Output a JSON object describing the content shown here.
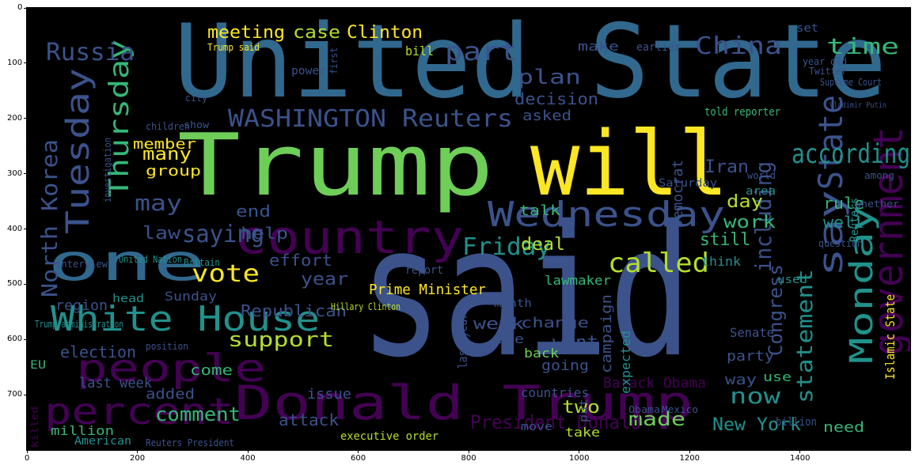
{
  "axes": {
    "x_ticks": [
      "0",
      "200",
      "400",
      "600",
      "800",
      "1000",
      "1200",
      "1400"
    ],
    "x_values": [
      0,
      200,
      400,
      600,
      800,
      1000,
      1200,
      1400
    ],
    "y_ticks": [
      "0",
      "100",
      "200",
      "300",
      "400",
      "500",
      "600",
      "700"
    ],
    "y_values": [
      0,
      100,
      200,
      300,
      400,
      500,
      600,
      700
    ],
    "x_max": 1600,
    "y_max": 800
  },
  "palette": {
    "background": "#000000",
    "purple": "#440154",
    "indigo": "#3b528b",
    "blue": "#31688e",
    "teal": "#21918c",
    "sea": "#35b779",
    "green": "#6ece58",
    "lime": "#b5de2b",
    "yellow": "#fde725"
  },
  "words": [
    {
      "text": "United State",
      "c": "blue"
    },
    {
      "text": "said",
      "c": "indigo"
    },
    {
      "text": "Trump",
      "c": "green"
    },
    {
      "text": "will",
      "c": "yellow"
    },
    {
      "text": "Donald Trump",
      "c": "purple"
    },
    {
      "text": "one",
      "c": "blue"
    },
    {
      "text": "country",
      "c": "purple"
    },
    {
      "text": "White House",
      "c": "teal"
    },
    {
      "text": "people",
      "c": "purple"
    },
    {
      "text": "percent",
      "c": "purple"
    },
    {
      "text": "Wednesday",
      "c": "indigo"
    },
    {
      "text": "WASHINGTON Reuters",
      "c": "indigo"
    },
    {
      "text": "government",
      "c": "purple"
    },
    {
      "text": "say",
      "c": "indigo"
    },
    {
      "text": "State",
      "c": "indigo"
    },
    {
      "text": "Monday",
      "c": "teal"
    },
    {
      "text": "Tuesday",
      "c": "indigo"
    },
    {
      "text": "Thursday",
      "c": "sea"
    },
    {
      "text": "North Korea",
      "c": "indigo"
    },
    {
      "text": "Russia",
      "c": "indigo"
    },
    {
      "text": "China",
      "c": "indigo"
    },
    {
      "text": "time",
      "c": "sea"
    },
    {
      "text": "part",
      "c": "indigo"
    },
    {
      "text": "plan",
      "c": "indigo"
    },
    {
      "text": "according",
      "c": "teal"
    },
    {
      "text": "meeting",
      "c": "yellow"
    },
    {
      "text": "case",
      "c": "lime"
    },
    {
      "text": "Clinton",
      "c": "yellow"
    },
    {
      "text": "called",
      "c": "lime"
    },
    {
      "text": "Friday",
      "c": "teal"
    },
    {
      "text": "vote",
      "c": "yellow"
    },
    {
      "text": "saying",
      "c": "indigo"
    },
    {
      "text": "may",
      "c": "indigo"
    },
    {
      "text": "law",
      "c": "indigo"
    },
    {
      "text": "many",
      "c": "yellow"
    },
    {
      "text": "including",
      "c": "indigo"
    },
    {
      "text": "statement",
      "c": "teal"
    },
    {
      "text": "Congress",
      "c": "indigo"
    },
    {
      "text": "support",
      "c": "lime"
    },
    {
      "text": "election",
      "c": "indigo"
    },
    {
      "text": "comment",
      "c": "sea"
    },
    {
      "text": "made",
      "c": "green"
    },
    {
      "text": "New York",
      "c": "teal"
    },
    {
      "text": "President Donald",
      "c": "purple"
    },
    {
      "text": "now",
      "c": "teal"
    },
    {
      "text": "Republican",
      "c": "indigo"
    },
    {
      "text": "Prime Minister",
      "c": "yellow"
    },
    {
      "text": "want",
      "c": "indigo"
    },
    {
      "text": "Barack Obama",
      "c": "purple"
    },
    {
      "text": "attack",
      "c": "indigo"
    },
    {
      "text": "added",
      "c": "indigo"
    },
    {
      "text": "last week",
      "c": "indigo"
    },
    {
      "text": "million",
      "c": "sea"
    },
    {
      "text": "Islamic State",
      "c": "yellow"
    },
    {
      "text": "decision",
      "c": "indigo"
    },
    {
      "text": "asked",
      "c": "indigo"
    },
    {
      "text": "member",
      "c": "yellow"
    },
    {
      "text": "told reporter",
      "c": "sea"
    },
    {
      "text": "Iran",
      "c": "indigo"
    },
    {
      "text": "day",
      "c": "lime"
    },
    {
      "text": "work",
      "c": "sea"
    },
    {
      "text": "rule",
      "c": "sea"
    },
    {
      "text": "well",
      "c": "teal"
    },
    {
      "text": "still",
      "c": "sea"
    },
    {
      "text": "deal",
      "c": "lime"
    },
    {
      "text": "talk",
      "c": "sea"
    },
    {
      "text": "group",
      "c": "yellow"
    },
    {
      "text": "end",
      "c": "indigo"
    },
    {
      "text": "help",
      "c": "indigo"
    },
    {
      "text": "effort",
      "c": "indigo"
    },
    {
      "text": "year",
      "c": "indigo"
    },
    {
      "text": "two",
      "c": "lime"
    },
    {
      "text": "week",
      "c": "indigo"
    },
    {
      "text": "change",
      "c": "indigo"
    },
    {
      "text": "campaign",
      "c": "indigo"
    },
    {
      "text": "issue",
      "c": "indigo"
    },
    {
      "text": "come",
      "c": "sea"
    },
    {
      "text": "Sunday",
      "c": "indigo"
    },
    {
      "text": "Saturday",
      "c": "indigo"
    },
    {
      "text": "Democrat",
      "c": "indigo"
    },
    {
      "text": "region",
      "c": "indigo"
    },
    {
      "text": "going",
      "c": "indigo"
    },
    {
      "text": "party",
      "c": "indigo"
    },
    {
      "text": "way",
      "c": "indigo"
    },
    {
      "text": "use",
      "c": "sea"
    },
    {
      "text": "need",
      "c": "sea"
    },
    {
      "text": "countries",
      "c": "indigo"
    },
    {
      "text": "take",
      "c": "lime"
    },
    {
      "text": "bill",
      "c": "lime"
    },
    {
      "text": "make",
      "c": "indigo"
    },
    {
      "text": "earlier",
      "c": "indigo"
    },
    {
      "text": "Senate",
      "c": "indigo"
    },
    {
      "text": "lawmaker",
      "c": "sea"
    },
    {
      "text": "expected",
      "c": "teal"
    },
    {
      "text": "back",
      "c": "green"
    },
    {
      "text": "month",
      "c": "indigo"
    },
    {
      "text": "last year",
      "c": "indigo"
    },
    {
      "text": "Trump said",
      "c": "yellow"
    },
    {
      "text": "Hillary Clinton",
      "c": "lime"
    },
    {
      "text": "Trump administration",
      "c": "teal"
    },
    {
      "text": "United Nation",
      "c": "teal"
    },
    {
      "text": "Reuters",
      "c": "teal"
    },
    {
      "text": "report",
      "c": "indigo"
    },
    {
      "text": "think",
      "c": "teal"
    },
    {
      "text": "move",
      "c": "indigo"
    },
    {
      "text": "put",
      "c": "indigo"
    },
    {
      "text": "see",
      "c": "indigo"
    },
    {
      "text": "executive order",
      "c": "lime"
    },
    {
      "text": "American",
      "c": "teal"
    },
    {
      "text": "Reuters President",
      "c": "indigo"
    },
    {
      "text": "killed",
      "c": "purple"
    },
    {
      "text": "EU",
      "c": "sea"
    },
    {
      "text": "head",
      "c": "teal"
    },
    {
      "text": "interview",
      "c": "indigo"
    },
    {
      "text": "area",
      "c": "teal"
    },
    {
      "text": "investigation",
      "c": "indigo"
    },
    {
      "text": "position",
      "c": "indigo"
    },
    {
      "text": "children",
      "c": "indigo"
    },
    {
      "text": "power",
      "c": "indigo"
    },
    {
      "text": "city",
      "c": "indigo"
    },
    {
      "text": "show",
      "c": "indigo"
    },
    {
      "text": "first",
      "c": "indigo"
    },
    {
      "text": "set",
      "c": "indigo"
    },
    {
      "text": "used",
      "c": "teal"
    },
    {
      "text": "year old",
      "c": "indigo"
    },
    {
      "text": "Twitter",
      "c": "indigo"
    },
    {
      "text": "billion",
      "c": "indigo"
    },
    {
      "text": "world",
      "c": "indigo"
    },
    {
      "text": "Obama",
      "c": "indigo"
    },
    {
      "text": "Mexico",
      "c": "indigo"
    },
    {
      "text": "Supreme Court",
      "c": "indigo"
    },
    {
      "text": "Vladimir Putin",
      "c": "indigo"
    },
    {
      "text": "question",
      "c": "indigo"
    },
    {
      "text": "Britain",
      "c": "teal"
    },
    {
      "text": "among",
      "c": "indigo"
    },
    {
      "text": "whether",
      "c": "indigo"
    }
  ]
}
